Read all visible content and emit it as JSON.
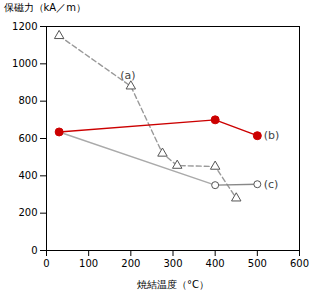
{
  "chart_data": {
    "type": "line",
    "xlabel": "焼結温度（°C）",
    "ylabel": "保磁力（kA／m）",
    "xlim": [
      0,
      600
    ],
    "ylim": [
      0,
      1200
    ],
    "xticks": [
      0,
      100,
      200,
      300,
      400,
      500,
      600
    ],
    "yticks": [
      0,
      200,
      400,
      600,
      800,
      1000,
      1200
    ],
    "grid": false,
    "series": [
      {
        "x": [
          30,
          400
        ],
        "values": [
          635,
          350
        ],
        "color": "#aaaaaa",
        "marker": "none",
        "line_style": "solid"
      },
      {
        "x": [
          30,
          200,
          275,
          310,
          400,
          450
        ],
        "values": [
          1150,
          880,
          520,
          455,
          450,
          280
        ],
        "color": "#999999",
        "marker": "triangle_open",
        "line_style": "dashed"
      },
      {
        "x": [
          400,
          500
        ],
        "values": [
          350,
          355
        ],
        "color": "#888888",
        "marker": "circle_open",
        "line_style": "solid"
      },
      {
        "x": [
          30,
          400,
          500
        ],
        "values": [
          635,
          700,
          615
        ],
        "color": "#cc0000",
        "marker": "circle",
        "line_style": "solid"
      }
    ],
    "annotations": [
      {
        "text": "(a)",
        "x": 175,
        "y": 940
      },
      {
        "text": "(b)",
        "x": 515,
        "y": 615
      },
      {
        "text": "(c)",
        "x": 515,
        "y": 355
      }
    ]
  }
}
